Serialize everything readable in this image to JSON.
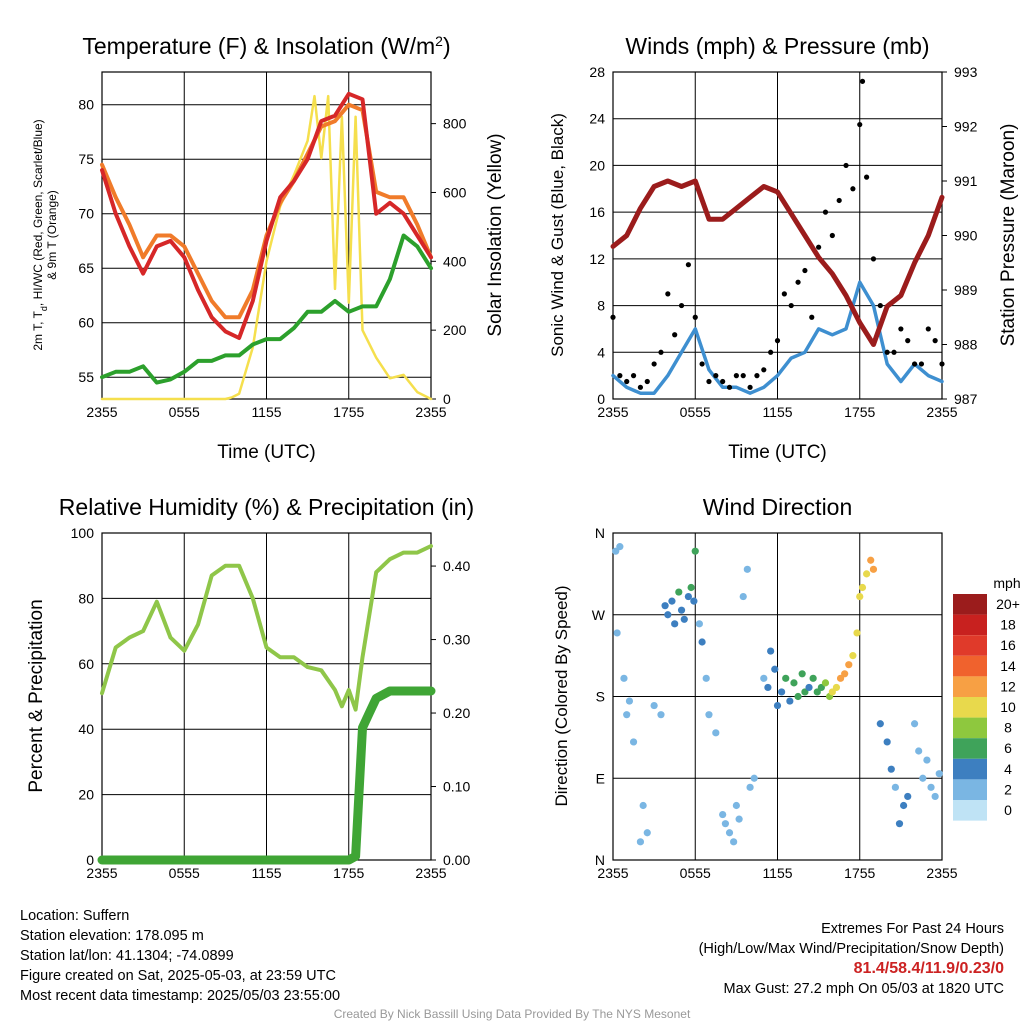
{
  "panels": {
    "temperature": {
      "title": "Temperature (F) & Insolation (W/m",
      "title_sup": "2",
      "title_end": ")",
      "ylabel_left_line1": "2m T, T",
      "ylabel_left_sub": "d",
      "ylabel_left_line1_end": ", HI/WC (Red, Green, Scarlet/Blue)",
      "ylabel_left_line2": "& 9m T (Orange)",
      "ylabel_right": "Solar Insolation (Yellow)",
      "xlabel": "Time (UTC)"
    },
    "winds": {
      "title": "Winds (mph) & Pressure (mb)",
      "ylabel_left": "Sonic Wind & Gust (Blue, Black)",
      "ylabel_right": "Station Pressure (Maroon)",
      "xlabel": "Time (UTC)"
    },
    "humidity": {
      "title": "Relative Humidity (%) & Precipitation (in)",
      "ylabel_left": "Percent & Precipitation"
    },
    "direction": {
      "title": "Wind Direction",
      "ylabel_left": "Direction (Colored By Speed)",
      "legend_title": "mph",
      "legend_labels": [
        "20+",
        "18",
        "16",
        "14",
        "12",
        "10",
        "8",
        "6",
        "4",
        "2",
        "0"
      ],
      "legend_colors": [
        "#9b1c1c",
        "#c8211f",
        "#e03a2a",
        "#f0622d",
        "#f7a044",
        "#e8d94c",
        "#8ec83e",
        "#3fa35a",
        "#3d7fc0",
        "#7ab6e3",
        "#bfe3f5"
      ]
    }
  },
  "info": {
    "location": "Location: Suffern",
    "elevation": "Station elevation: 178.095 m",
    "latlon": "Station lat/lon: 41.1304; -74.0899",
    "created": "Figure created on Sat, 2025-05-03, at 23:59 UTC",
    "recent": "Most recent data timestamp: 2025/05/03 23:55:00",
    "extremes_title": "Extremes For Past 24 Hours",
    "extremes_sub": "(High/Low/Max Wind/Precipitation/Snow Depth)",
    "extremes_values": "81.4/58.4/11.9/0.23/0",
    "max_gust": "Max Gust: 27.2 mph On 05/03 at 1820 UTC",
    "credit": "Created By Nick Bassill Using Data Provided By The NYS Mesonet"
  },
  "chart_data": [
    {
      "type": "line",
      "title": "Temperature (F) & Insolation (W/m2)",
      "xlabel": "Time (UTC)",
      "ylabel": "2m T, Td, HI/WC (Red, Green, Scarlet/Blue) & 9m T (Orange)",
      "y2label": "Solar Insolation (Yellow)",
      "xticks": [
        "2355",
        "0555",
        "1155",
        "1755",
        "2355"
      ],
      "xlim": [
        0,
        24
      ],
      "ylim": [
        53,
        83
      ],
      "y2lim": [
        0,
        950
      ],
      "yticks": [
        55,
        60,
        65,
        70,
        75,
        80
      ],
      "y2ticks": [
        0,
        200,
        400,
        600,
        800
      ],
      "grid": true,
      "series": [
        {
          "color": "#d62728",
          "axis": "left",
          "x": [
            0,
            1,
            2,
            3,
            4,
            5,
            6,
            7,
            8,
            9,
            10,
            11,
            12,
            13,
            14,
            15,
            16,
            17,
            18,
            19,
            20,
            21,
            22,
            23,
            24
          ],
          "values": [
            74,
            70,
            67,
            64.5,
            67,
            67.5,
            66,
            63,
            60.5,
            59.2,
            58.6,
            62,
            67.5,
            71.5,
            73,
            75,
            78.5,
            79,
            81,
            80.5,
            70,
            71,
            70,
            68,
            66
          ]
        },
        {
          "color": "#f07b2a",
          "axis": "left",
          "x": [
            0,
            1,
            2,
            3,
            4,
            5,
            6,
            7,
            8,
            9,
            10,
            11,
            12,
            13,
            14,
            15,
            16,
            17,
            18,
            19,
            20,
            21,
            22,
            23,
            24
          ],
          "values": [
            74.5,
            71.5,
            69,
            66,
            68,
            68,
            67,
            64.5,
            62,
            60.5,
            60.5,
            63,
            68,
            71,
            73,
            75.5,
            78,
            78.5,
            80,
            79.5,
            72,
            71.5,
            71.5,
            69,
            66
          ]
        },
        {
          "color": "#2ca02c",
          "axis": "left",
          "x": [
            0,
            1,
            2,
            3,
            4,
            5,
            6,
            7,
            8,
            9,
            10,
            11,
            12,
            13,
            14,
            15,
            16,
            17,
            18,
            19,
            20,
            21,
            22,
            23,
            24
          ],
          "values": [
            55,
            55.5,
            55.5,
            56,
            54.5,
            54.8,
            55.5,
            56.5,
            56.5,
            57,
            57,
            58,
            58.5,
            58.5,
            59.5,
            61,
            61,
            62,
            61,
            61.5,
            61.5,
            64,
            68,
            67,
            65
          ]
        },
        {
          "color": "#f5df4d",
          "axis": "right",
          "x": [
            0,
            1,
            2,
            3,
            4,
            5,
            6,
            7,
            8,
            9,
            9.5,
            10,
            11,
            12,
            13,
            14,
            15,
            15.5,
            16,
            16.5,
            17,
            17.5,
            18,
            18.5,
            19,
            20,
            21,
            22,
            23,
            24
          ],
          "values": [
            0,
            0,
            0,
            0,
            0,
            0,
            0,
            0,
            0,
            0,
            5,
            15,
            150,
            400,
            560,
            650,
            750,
            880,
            700,
            880,
            320,
            820,
            280,
            820,
            200,
            120,
            60,
            70,
            20,
            0
          ]
        }
      ]
    },
    {
      "type": "line",
      "title": "Winds (mph) & Pressure (mb)",
      "xlabel": "Time (UTC)",
      "ylabel": "Sonic Wind & Gust (Blue, Black)",
      "y2label": "Station Pressure (Maroon)",
      "xticks": [
        "2355",
        "0555",
        "1155",
        "1755",
        "2355"
      ],
      "xlim": [
        0,
        24
      ],
      "ylim": [
        0,
        28
      ],
      "y2lim": [
        987,
        993
      ],
      "yticks": [
        0,
        4,
        8,
        12,
        16,
        20,
        24,
        28
      ],
      "y2ticks": [
        987,
        988,
        989,
        990,
        991,
        992,
        993
      ],
      "grid": true,
      "series": [
        {
          "color": "#3e8fd0",
          "axis": "left",
          "x": [
            0,
            1,
            2,
            3,
            4,
            5,
            6,
            7,
            8,
            9,
            10,
            11,
            12,
            13,
            14,
            15,
            16,
            17,
            18,
            19,
            20,
            21,
            22,
            23,
            24
          ],
          "values": [
            2,
            1,
            0.5,
            0.5,
            2,
            4,
            6,
            2.5,
            1,
            1,
            0.5,
            1,
            2,
            3.5,
            4,
            6,
            5.5,
            6,
            10,
            8,
            3,
            1.5,
            3,
            2,
            1.5
          ]
        },
        {
          "color": "#000000",
          "axis": "left",
          "kind": "scatter",
          "x": [
            0,
            0.5,
            1,
            1.5,
            2,
            2.5,
            3,
            3.5,
            4,
            4.5,
            5,
            5.5,
            6,
            6.5,
            7,
            7.5,
            8,
            8.5,
            9,
            9.5,
            10,
            10.5,
            11,
            11.5,
            12,
            12.5,
            13,
            13.5,
            14,
            14.5,
            15,
            15.5,
            16,
            16.5,
            17,
            17.5,
            18,
            18.2,
            18.5,
            19,
            19.5,
            20,
            20.5,
            21,
            21.5,
            22,
            22.5,
            23,
            23.5,
            24
          ],
          "values": [
            7,
            2,
            1.5,
            2,
            1,
            1.5,
            3,
            4,
            9,
            5.5,
            8,
            11.5,
            7,
            3,
            1.5,
            2,
            1.5,
            1,
            2,
            2,
            1,
            2,
            2.5,
            4,
            5,
            9,
            8,
            10,
            11,
            7,
            13,
            16,
            14,
            17,
            20,
            18,
            23.5,
            27.2,
            19,
            12,
            8,
            4,
            4,
            6,
            5,
            3,
            3,
            6,
            5,
            3
          ]
        },
        {
          "color": "#9b1c1c",
          "axis": "right",
          "x": [
            0,
            1,
            2,
            3,
            4,
            5,
            6,
            7,
            8,
            9,
            10,
            11,
            12,
            13,
            14,
            15,
            16,
            17,
            18,
            19,
            20,
            21,
            22,
            23,
            24
          ],
          "values": [
            989.8,
            990,
            990.5,
            990.9,
            991,
            990.9,
            991,
            990.3,
            990.3,
            990.5,
            990.7,
            990.9,
            990.8,
            990.4,
            990,
            989.6,
            989.3,
            988.9,
            988.4,
            988,
            988.7,
            988.9,
            989.5,
            990,
            990.7
          ]
        }
      ]
    },
    {
      "type": "line",
      "title": "Relative Humidity (%) & Precipitation (in)",
      "ylabel": "Percent & Precipitation",
      "xticks": [
        "2355",
        "0555",
        "1155",
        "1755",
        "2355"
      ],
      "xlim": [
        0,
        24
      ],
      "ylim": [
        0,
        100
      ],
      "y2lim": [
        0,
        0.445
      ],
      "yticks": [
        0,
        20,
        40,
        60,
        80,
        100
      ],
      "y2ticks": [
        0.0,
        0.1,
        0.2,
        0.3,
        0.4
      ],
      "grid": true,
      "series": [
        {
          "color": "#8fc649",
          "axis": "left",
          "x": [
            0,
            1,
            2,
            3,
            4,
            5,
            6,
            7,
            8,
            9,
            10,
            11,
            12,
            13,
            14,
            15,
            16,
            17,
            17.5,
            18,
            18.5,
            19,
            20,
            21,
            22,
            23,
            24
          ],
          "values": [
            51,
            65,
            68,
            70,
            79,
            68,
            64,
            72,
            87,
            90,
            90,
            80,
            65,
            62,
            62,
            59,
            58,
            52,
            47,
            52,
            46,
            62,
            88,
            92,
            94,
            94,
            96
          ]
        },
        {
          "color": "#3fa535",
          "axis": "right",
          "x": [
            0,
            1,
            2,
            3,
            4,
            5,
            6,
            7,
            8,
            9,
            10,
            11,
            12,
            13,
            14,
            15,
            16,
            17,
            18,
            18.5,
            19,
            19.5,
            20,
            21,
            22,
            23,
            24
          ],
          "values": [
            0,
            0,
            0,
            0,
            0,
            0,
            0,
            0,
            0,
            0,
            0,
            0,
            0,
            0,
            0,
            0,
            0,
            0,
            0,
            0.005,
            0.18,
            0.2,
            0.22,
            0.23,
            0.23,
            0.23,
            0.23
          ]
        }
      ]
    },
    {
      "type": "scatter",
      "title": "Wind Direction",
      "ylabel": "Direction (Colored By Speed)",
      "xticks": [
        "2355",
        "0555",
        "1155",
        "1755",
        "2355"
      ],
      "yticks": [
        "N",
        "E",
        "S",
        "W",
        "N"
      ],
      "xlim": [
        0,
        24
      ],
      "ylim": [
        0,
        360
      ],
      "grid": true,
      "legend": "right",
      "points": [
        [
          0.2,
          340,
          1
        ],
        [
          0.5,
          345,
          1
        ],
        [
          0.3,
          250,
          1
        ],
        [
          0.8,
          200,
          2
        ],
        [
          1.0,
          160,
          1
        ],
        [
          1.2,
          175,
          2
        ],
        [
          1.5,
          130,
          1
        ],
        [
          2.0,
          20,
          1
        ],
        [
          2.5,
          30,
          1
        ],
        [
          2.2,
          60,
          1
        ],
        [
          3.0,
          170,
          1
        ],
        [
          3.5,
          160,
          2
        ],
        [
          3.8,
          280,
          3
        ],
        [
          4.0,
          270,
          4
        ],
        [
          4.3,
          285,
          3
        ],
        [
          4.5,
          260,
          3
        ],
        [
          4.8,
          295,
          5
        ],
        [
          5.0,
          275,
          4
        ],
        [
          5.2,
          265,
          3
        ],
        [
          5.5,
          290,
          4
        ],
        [
          5.7,
          300,
          6
        ],
        [
          5.9,
          285,
          4
        ],
        [
          6.0,
          340,
          6
        ],
        [
          6.3,
          260,
          2
        ],
        [
          6.5,
          240,
          3
        ],
        [
          6.8,
          200,
          2
        ],
        [
          7.0,
          160,
          2
        ],
        [
          7.5,
          140,
          1
        ],
        [
          8.0,
          50,
          2
        ],
        [
          8.2,
          40,
          1
        ],
        [
          8.5,
          30,
          1
        ],
        [
          8.8,
          20,
          1
        ],
        [
          9.0,
          60,
          2
        ],
        [
          9.2,
          45,
          1
        ],
        [
          9.5,
          290,
          1
        ],
        [
          9.8,
          320,
          1
        ],
        [
          10.0,
          80,
          1
        ],
        [
          10.3,
          90,
          1
        ],
        [
          11.0,
          200,
          2
        ],
        [
          11.3,
          190,
          3
        ],
        [
          11.5,
          230,
          3
        ],
        [
          11.8,
          210,
          4
        ],
        [
          12.0,
          170,
          3
        ],
        [
          12.3,
          185,
          4
        ],
        [
          12.6,
          200,
          5
        ],
        [
          12.9,
          175,
          4
        ],
        [
          13.2,
          195,
          6
        ],
        [
          13.5,
          180,
          5
        ],
        [
          13.8,
          205,
          6
        ],
        [
          14.0,
          185,
          5
        ],
        [
          14.3,
          190,
          4
        ],
        [
          14.6,
          200,
          6
        ],
        [
          14.9,
          185,
          5
        ],
        [
          15.2,
          190,
          6
        ],
        [
          15.5,
          195,
          7
        ],
        [
          15.8,
          180,
          8
        ],
        [
          16.0,
          185,
          9
        ],
        [
          16.3,
          190,
          10
        ],
        [
          16.6,
          200,
          11
        ],
        [
          16.9,
          205,
          12
        ],
        [
          17.2,
          215,
          12
        ],
        [
          17.5,
          225,
          10
        ],
        [
          17.8,
          250,
          9
        ],
        [
          18.0,
          290,
          9
        ],
        [
          18.2,
          300,
          10
        ],
        [
          18.5,
          315,
          10
        ],
        [
          18.8,
          330,
          11
        ],
        [
          19.0,
          320,
          11
        ],
        [
          19.5,
          150,
          3
        ],
        [
          20.0,
          130,
          3
        ],
        [
          20.3,
          100,
          3
        ],
        [
          20.6,
          80,
          2
        ],
        [
          20.9,
          40,
          3
        ],
        [
          21.2,
          60,
          3
        ],
        [
          21.5,
          70,
          3
        ],
        [
          22.0,
          150,
          2
        ],
        [
          22.3,
          120,
          2
        ],
        [
          22.6,
          90,
          2
        ],
        [
          22.9,
          110,
          1
        ],
        [
          23.2,
          80,
          2
        ],
        [
          23.5,
          70,
          2
        ],
        [
          23.8,
          95,
          2
        ]
      ]
    }
  ]
}
